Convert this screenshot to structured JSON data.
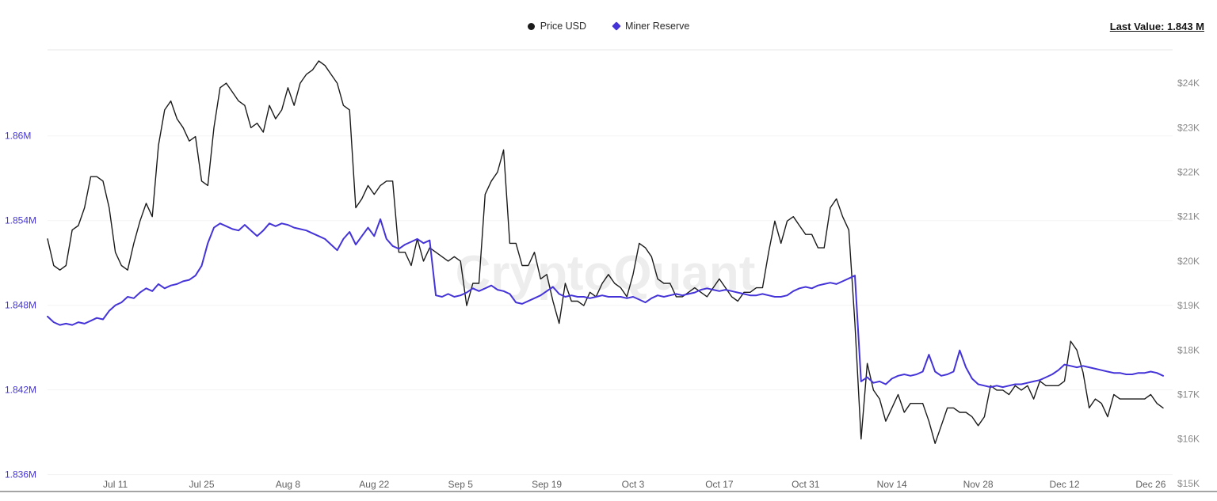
{
  "chart_data": {
    "type": "line",
    "watermark": "CryptoQuant",
    "last_value_label": "Last Value: 1.843 M",
    "legend": [
      {
        "label": "Price USD",
        "color": "#1b1b1b",
        "marker": "circle"
      },
      {
        "label": "Miner Reserve",
        "color": "#4434d8",
        "marker": "diamond"
      }
    ],
    "x_axis_color": "#5f5f5f",
    "x_ticks": [
      {
        "index": 11,
        "label": "Jul 11"
      },
      {
        "index": 25,
        "label": "Jul 25"
      },
      {
        "index": 39,
        "label": "Aug 8"
      },
      {
        "index": 53,
        "label": "Aug 22"
      },
      {
        "index": 67,
        "label": "Sep 5"
      },
      {
        "index": 81,
        "label": "Sep 19"
      },
      {
        "index": 95,
        "label": "Oct 3"
      },
      {
        "index": 109,
        "label": "Oct 17"
      },
      {
        "index": 123,
        "label": "Oct 31"
      },
      {
        "index": 137,
        "label": "Nov 14"
      },
      {
        "index": 151,
        "label": "Nov 28"
      },
      {
        "index": 165,
        "label": "Dec 12"
      },
      {
        "index": 179,
        "label": "Dec 26"
      }
    ],
    "left_axis": {
      "color": "#4434d8",
      "min": 1.8348,
      "max": 1.8661,
      "ticks": [
        {
          "value": 1.86,
          "label": "1.86M"
        },
        {
          "value": 1.854,
          "label": "1.854M"
        },
        {
          "value": 1.848,
          "label": "1.848M"
        },
        {
          "value": 1.842,
          "label": "1.842M"
        },
        {
          "value": 1.836,
          "label": "1.836M"
        }
      ]
    },
    "right_axis": {
      "color": "#8a8a8a",
      "min": 14.82,
      "max": 24.75,
      "ticks": [
        {
          "value": 24,
          "label": "$24K"
        },
        {
          "value": 23,
          "label": "$23K"
        },
        {
          "value": 22,
          "label": "$22K"
        },
        {
          "value": 21,
          "label": "$21K"
        },
        {
          "value": 20,
          "label": "$20K"
        },
        {
          "value": 19,
          "label": "$19K"
        },
        {
          "value": 18,
          "label": "$18K"
        },
        {
          "value": 17,
          "label": "$17K"
        },
        {
          "value": 16,
          "label": "$16K"
        },
        {
          "value": 15,
          "label": "$15K"
        }
      ]
    },
    "series": [
      {
        "id": "price-usd",
        "name": "Price USD",
        "axis": "right",
        "color": "#1b1b1b",
        "width": 1.4,
        "values": [
          20.5,
          19.9,
          19.8,
          19.9,
          20.7,
          20.8,
          21.2,
          21.9,
          21.9,
          21.8,
          21.2,
          20.2,
          19.9,
          19.8,
          20.4,
          20.9,
          21.3,
          21.0,
          22.6,
          23.4,
          23.6,
          23.2,
          23.0,
          22.7,
          22.8,
          21.8,
          21.7,
          23.0,
          23.9,
          24.0,
          23.8,
          23.6,
          23.5,
          23.0,
          23.1,
          22.9,
          23.5,
          23.2,
          23.4,
          23.9,
          23.5,
          24.0,
          24.2,
          24.3,
          24.5,
          24.4,
          24.2,
          24.0,
          23.5,
          23.4,
          21.2,
          21.4,
          21.7,
          21.5,
          21.7,
          21.8,
          21.8,
          20.2,
          20.2,
          19.9,
          20.5,
          20.0,
          20.3,
          20.2,
          20.1,
          20.0,
          20.1,
          20.0,
          19.0,
          19.5,
          19.5,
          21.5,
          21.8,
          22.0,
          22.5,
          20.4,
          20.4,
          19.9,
          19.9,
          20.2,
          19.6,
          19.7,
          19.1,
          18.6,
          19.5,
          19.1,
          19.1,
          19.0,
          19.3,
          19.2,
          19.5,
          19.7,
          19.5,
          19.4,
          19.2,
          19.7,
          20.4,
          20.3,
          20.1,
          19.6,
          19.5,
          19.5,
          19.2,
          19.2,
          19.3,
          19.4,
          19.3,
          19.2,
          19.4,
          19.6,
          19.4,
          19.2,
          19.1,
          19.3,
          19.3,
          19.4,
          19.4,
          20.2,
          20.9,
          20.4,
          20.9,
          21.0,
          20.8,
          20.6,
          20.6,
          20.3,
          20.3,
          21.2,
          21.4,
          21.0,
          20.7,
          18.6,
          16.0,
          17.7,
          17.1,
          16.9,
          16.4,
          16.7,
          17.0,
          16.6,
          16.8,
          16.8,
          16.8,
          16.4,
          15.9,
          16.3,
          16.7,
          16.7,
          16.6,
          16.6,
          16.5,
          16.3,
          16.5,
          17.2,
          17.1,
          17.1,
          17.0,
          17.2,
          17.1,
          17.2,
          16.9,
          17.3,
          17.2,
          17.2,
          17.2,
          17.3,
          18.2,
          18.0,
          17.5,
          16.7,
          16.9,
          16.8,
          16.5,
          17.0,
          16.9,
          16.9,
          16.9,
          16.9,
          16.9,
          17.0,
          16.8,
          16.7
        ]
      },
      {
        "id": "miner-reserve",
        "name": "Miner Reserve",
        "axis": "left",
        "color": "#4434d8",
        "width": 2,
        "values": [
          1.8472,
          1.8468,
          1.8466,
          1.8467,
          1.8466,
          1.8468,
          1.8467,
          1.8469,
          1.8471,
          1.847,
          1.8476,
          1.848,
          1.8482,
          1.8486,
          1.8485,
          1.8489,
          1.8492,
          1.849,
          1.8495,
          1.8492,
          1.8494,
          1.8495,
          1.8497,
          1.8498,
          1.8501,
          1.8508,
          1.8524,
          1.8535,
          1.8538,
          1.8536,
          1.8534,
          1.8533,
          1.8537,
          1.8533,
          1.8529,
          1.8533,
          1.8538,
          1.8536,
          1.8538,
          1.8537,
          1.8535,
          1.8534,
          1.8533,
          1.8531,
          1.8529,
          1.8527,
          1.8523,
          1.8519,
          1.8527,
          1.8532,
          1.8523,
          1.8529,
          1.8535,
          1.8529,
          1.8541,
          1.8527,
          1.8522,
          1.852,
          1.8523,
          1.8525,
          1.8527,
          1.8524,
          1.8526,
          1.8487,
          1.8486,
          1.8488,
          1.8486,
          1.8487,
          1.8489,
          1.8492,
          1.849,
          1.8492,
          1.8494,
          1.8491,
          1.849,
          1.8488,
          1.8482,
          1.8481,
          1.8483,
          1.8485,
          1.8487,
          1.849,
          1.8493,
          1.8488,
          1.8486,
          1.8487,
          1.8486,
          1.8486,
          1.8485,
          1.8486,
          1.8487,
          1.8486,
          1.8486,
          1.8486,
          1.8485,
          1.8486,
          1.8484,
          1.8482,
          1.8485,
          1.8487,
          1.8486,
          1.8487,
          1.8488,
          1.8487,
          1.8488,
          1.8489,
          1.8491,
          1.8492,
          1.8491,
          1.849,
          1.8491,
          1.849,
          1.8489,
          1.8488,
          1.8487,
          1.8487,
          1.8488,
          1.8487,
          1.8486,
          1.8486,
          1.8487,
          1.849,
          1.8492,
          1.8493,
          1.8492,
          1.8494,
          1.8495,
          1.8496,
          1.8495,
          1.8497,
          1.8499,
          1.8501,
          1.8426,
          1.8429,
          1.8425,
          1.8426,
          1.8424,
          1.8428,
          1.843,
          1.8431,
          1.843,
          1.8431,
          1.8433,
          1.8445,
          1.8433,
          1.843,
          1.8431,
          1.8433,
          1.8448,
          1.8436,
          1.8428,
          1.8424,
          1.8423,
          1.8422,
          1.8423,
          1.8422,
          1.8423,
          1.8424,
          1.8424,
          1.8425,
          1.8426,
          1.8427,
          1.8429,
          1.8431,
          1.8434,
          1.8438,
          1.8437,
          1.8436,
          1.8437,
          1.8436,
          1.8435,
          1.8434,
          1.8433,
          1.8432,
          1.8432,
          1.8431,
          1.8431,
          1.8432,
          1.8432,
          1.8433,
          1.8432,
          1.843
        ]
      }
    ],
    "colors": {
      "grid": "#f3f3f3",
      "border": "#e7e7e7",
      "axis_line": "#4a4a4a",
      "watermark": "rgba(0,0,0,0.07)"
    }
  }
}
